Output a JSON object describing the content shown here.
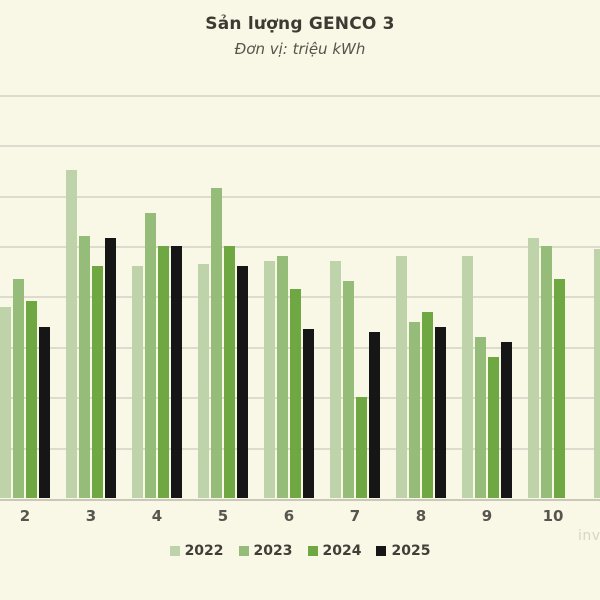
{
  "title": "Sản lượng GENCO 3",
  "subtitle": "Đơn vị: triệu kWh",
  "watermark": "inv",
  "colors": {
    "background": "#f9f7e5",
    "gridline": "#dcdbcd",
    "axis_line": "#c9c8b8",
    "title_text": "#3b3b33",
    "subtitle_text": "#55554b",
    "tick_text": "#56564e",
    "legend_text": "#3f3f38"
  },
  "chart_data": {
    "type": "bar",
    "title": "Sản lượng GENCO 3",
    "subtitle": "Đơn vị: triệu kWh",
    "ylabel": "triệu kWh",
    "xlabel": "",
    "categories": [
      "2",
      "3",
      "4",
      "5",
      "6",
      "7",
      "8",
      "9",
      "10"
    ],
    "series": [
      {
        "name": "2022",
        "color": "#bed3aa",
        "values": [
          3.8,
          6.5,
          4.6,
          4.65,
          4.7,
          4.7,
          4.8,
          4.8,
          5.15
        ]
      },
      {
        "name": "2023",
        "color": "#95bd79",
        "values": [
          4.35,
          5.2,
          5.65,
          6.15,
          4.8,
          4.3,
          3.5,
          3.2,
          5.0
        ]
      },
      {
        "name": "2024",
        "color": "#6fa742",
        "values": [
          3.9,
          4.6,
          5.0,
          5.0,
          4.15,
          2.0,
          3.7,
          2.8,
          4.35
        ]
      },
      {
        "name": "2025",
        "color": "#161616",
        "values": [
          3.4,
          5.15,
          5.0,
          4.6,
          3.35,
          3.3,
          3.4,
          3.1,
          null
        ]
      }
    ],
    "edge_bar_partial": {
      "series": "2022",
      "value": 4.95
    },
    "ylim": [
      0,
      8
    ],
    "gridline_step": 1,
    "y_tick_labels_visible": false,
    "value_units": "gridline units (y-axis numeric labels cropped out of view)",
    "grid": true,
    "legend_position": "bottom"
  }
}
